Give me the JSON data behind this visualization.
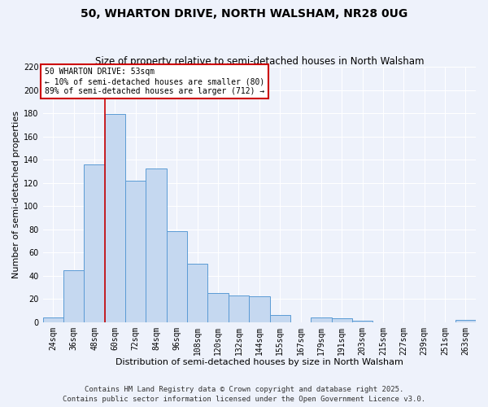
{
  "title": "50, WHARTON DRIVE, NORTH WALSHAM, NR28 0UG",
  "subtitle": "Size of property relative to semi-detached houses in North Walsham",
  "xlabel": "Distribution of semi-detached houses by size in North Walsham",
  "ylabel": "Number of semi-detached properties",
  "bar_labels": [
    "24sqm",
    "36sqm",
    "48sqm",
    "60sqm",
    "72sqm",
    "84sqm",
    "96sqm",
    "108sqm",
    "120sqm",
    "132sqm",
    "144sqm",
    "155sqm",
    "167sqm",
    "179sqm",
    "191sqm",
    "203sqm",
    "215sqm",
    "227sqm",
    "239sqm",
    "251sqm",
    "263sqm"
  ],
  "bar_values": [
    4,
    45,
    136,
    179,
    122,
    132,
    78,
    50,
    25,
    23,
    22,
    6,
    0,
    4,
    3,
    1,
    0,
    0,
    0,
    0,
    2
  ],
  "bar_color": "#c5d8f0",
  "bar_edge_color": "#5b9bd5",
  "ylim": [
    0,
    220
  ],
  "yticks": [
    0,
    20,
    40,
    60,
    80,
    100,
    120,
    140,
    160,
    180,
    200,
    220
  ],
  "vline_x": 2.5,
  "vline_color": "#cc0000",
  "annotation_title": "50 WHARTON DRIVE: 53sqm",
  "annotation_line1": "← 10% of semi-detached houses are smaller (80)",
  "annotation_line2": "89% of semi-detached houses are larger (712) →",
  "annotation_box_color": "#ffffff",
  "annotation_box_edge": "#cc0000",
  "footer1": "Contains HM Land Registry data © Crown copyright and database right 2025.",
  "footer2": "Contains public sector information licensed under the Open Government Licence v3.0.",
  "bg_color": "#eef2fb",
  "grid_color": "#ffffff",
  "title_fontsize": 10,
  "subtitle_fontsize": 8.5,
  "xlabel_fontsize": 8,
  "ylabel_fontsize": 8,
  "tick_fontsize": 7,
  "footer_fontsize": 6.5
}
